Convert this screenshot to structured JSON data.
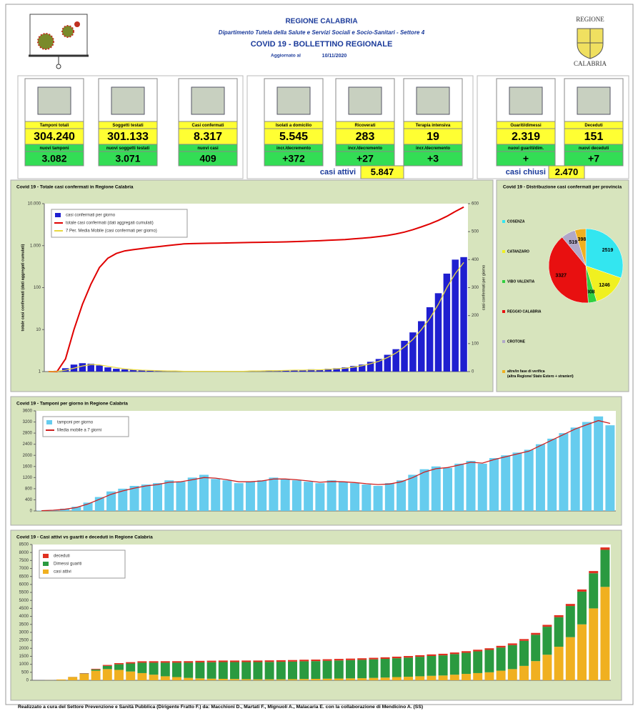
{
  "header": {
    "region": "REGIONE CALABRIA",
    "department": "Dipartimento Tutela della Salute e Servizi Sociali e Socio-Sanitari - Settore 4",
    "title": "COVID 19 - BOLLETTINO REGIONALE",
    "updated_label": "Aggiornato al",
    "updated_date": "10/11/2020",
    "logo_top": "REGIONE",
    "logo_bottom": "CALABRIA"
  },
  "tiles": [
    {
      "label": "Tamponi totali",
      "value": "304.240",
      "sublabel": "nuovi tamponi",
      "subvalue": "3.082"
    },
    {
      "label": "Soggetti testati",
      "value": "301.133",
      "sublabel": "nuovi soggetti testati",
      "subvalue": "3.071"
    },
    {
      "label": "Casi confermati",
      "value": "8.317",
      "sublabel": "nuovi casi",
      "subvalue": "409"
    },
    {
      "label": "Isolati a domicilio",
      "value": "5.545",
      "sublabel": "incr./decremento",
      "subvalue": "+372"
    },
    {
      "label": "Ricoverati",
      "value": "283",
      "sublabel": "incr./decremento",
      "subvalue": "+27"
    },
    {
      "label": "Terapia intensiva",
      "value": "19",
      "sublabel": "incr./decremento",
      "subvalue": "+3"
    },
    {
      "label": "Guariti/dimessi",
      "value": "2.319",
      "sublabel": "nuovi guariti/dim.",
      "subvalue": "+"
    },
    {
      "label": "Deceduti",
      "value": "151",
      "sublabel": "nuovi deceduti",
      "subvalue": "+7"
    }
  ],
  "casi_attivi": {
    "label": "casi attivi",
    "value": "5.847"
  },
  "casi_chiusi": {
    "label": "casi chiusi",
    "value": "2.470"
  },
  "chart_data": [
    {
      "type": "bar",
      "title": "Covid 19 - Totale casi confermati in Regione Calabria",
      "ylabel": "totale casi confermati (dati aggregati cumulati)",
      "y2label": "casi confermati per giorno",
      "ylog": true,
      "ylim": [
        1,
        10000
      ],
      "yticks": [
        1,
        10,
        100,
        {
          "value": 1000,
          "label": "1.000"
        },
        {
          "value": 10000,
          "label": "10.000"
        }
      ],
      "y2lim": [
        0,
        600
      ],
      "y2ticks": [
        0,
        100,
        200,
        300,
        400,
        500,
        600
      ],
      "legend": "upper left",
      "series": [
        {
          "name": "casi confermati per giorno",
          "color": "#1f1fd0",
          "type": "bar",
          "axis": "y2",
          "values": [
            0,
            3,
            12,
            25,
            30,
            28,
            22,
            15,
            10,
            8,
            6,
            5,
            3,
            2,
            2,
            1,
            1,
            1,
            1,
            0,
            1,
            1,
            2,
            1,
            3,
            2,
            4,
            3,
            5,
            6,
            4,
            8,
            6,
            10,
            12,
            15,
            20,
            25,
            35,
            45,
            60,
            80,
            110,
            140,
            180,
            230,
            280,
            350,
            400,
            409
          ]
        },
        {
          "name": "totale casi confermati (dati aggregati cumulati)",
          "color": "#e00000",
          "type": "line",
          "axis": "y",
          "values": [
            1,
            1,
            2,
            10,
            40,
            120,
            300,
            500,
            650,
            750,
            800,
            850,
            900,
            950,
            1000,
            1050,
            1100,
            1120,
            1130,
            1140,
            1150,
            1160,
            1170,
            1180,
            1190,
            1200,
            1210,
            1220,
            1230,
            1250,
            1270,
            1290,
            1310,
            1340,
            1370,
            1400,
            1450,
            1500,
            1560,
            1650,
            1750,
            1900,
            2100,
            2400,
            2800,
            3300,
            4000,
            5000,
            6500,
            8317
          ]
        },
        {
          "name": "7 Per. Media Mobile (casi confermati per giorno)",
          "color": "#e8d840",
          "type": "line",
          "axis": "y2",
          "values": [
            0,
            1,
            5,
            12,
            20,
            25,
            24,
            19,
            14,
            10,
            7,
            5,
            4,
            3,
            2,
            2,
            1,
            1,
            1,
            1,
            1,
            1,
            1,
            1,
            2,
            2,
            3,
            3,
            4,
            5,
            5,
            6,
            6,
            8,
            10,
            12,
            16,
            21,
            28,
            37,
            50,
            66,
            88,
            115,
            150,
            190,
            240,
            300,
            350,
            390
          ]
        }
      ]
    },
    {
      "type": "pie",
      "title": "Covid 19 - Distribuzione casi confermati per provincia",
      "categories": [
        "COSENZA",
        "CATANZARO",
        "VIBO VALENTIA",
        "REGGIO CALABRIA",
        "CROTONE",
        "altre/in fase di verifica (altra Regione/ Stato Estero + stranieri)"
      ],
      "values": [
        2519,
        1246,
        308,
        3327,
        519,
        398
      ],
      "colors": [
        "#33e6f0",
        "#f0f020",
        "#30d040",
        "#e81010",
        "#b0a8c8",
        "#f0b020"
      ]
    },
    {
      "type": "bar",
      "title": "Covid 19 - Tamponi per giorno in Regione Calabria",
      "ylim": [
        0,
        3600
      ],
      "yticks": [
        0,
        400,
        800,
        1200,
        1600,
        2000,
        2400,
        2800,
        3200,
        3600
      ],
      "legend": "upper left",
      "series": [
        {
          "name": "tamponi per giorno",
          "color": "#66ccee",
          "type": "bar",
          "axis": "y",
          "values": [
            10,
            30,
            80,
            150,
            300,
            500,
            700,
            800,
            900,
            950,
            1000,
            1100,
            1050,
            1200,
            1300,
            1150,
            1100,
            1000,
            1050,
            1100,
            1200,
            1150,
            1100,
            1050,
            1000,
            1100,
            1050,
            1000,
            950,
            900,
            1000,
            1100,
            1300,
            1500,
            1600,
            1550,
            1700,
            1800,
            1700,
            1900,
            2000,
            2100,
            2200,
            2400,
            2600,
            2800,
            3000,
            3200,
            3400,
            3082
          ]
        },
        {
          "name": "Media mobile a 7 giorni",
          "color": "#cc2020",
          "type": "line",
          "axis": "y",
          "values": [
            10,
            25,
            60,
            120,
            250,
            420,
            600,
            720,
            820,
            900,
            950,
            1030,
            1050,
            1120,
            1200,
            1180,
            1120,
            1050,
            1050,
            1080,
            1150,
            1150,
            1120,
            1080,
            1030,
            1060,
            1050,
            1020,
            980,
            950,
            970,
            1050,
            1200,
            1400,
            1520,
            1560,
            1650,
            1750,
            1720,
            1850,
            1950,
            2050,
            2150,
            2350,
            2550,
            2750,
            2950,
            3100,
            3250,
            3150
          ]
        }
      ]
    },
    {
      "type": "stackedbar",
      "title": "Covid 19 - Casi attivi vs guariti e deceduti in Regione Calabria",
      "ylim": [
        0,
        8500
      ],
      "yticks": [
        0,
        500,
        1000,
        1500,
        2000,
        2500,
        3000,
        3500,
        4000,
        4500,
        5000,
        5500,
        6000,
        6500,
        7000,
        7500,
        8000,
        8500
      ],
      "legend": "upper left",
      "series": [
        {
          "name": "deceduti",
          "color": "#e03020",
          "values": [
            0,
            0,
            1,
            5,
            20,
            40,
            60,
            75,
            85,
            90,
            93,
            95,
            96,
            97,
            97,
            97,
            97,
            97,
            97,
            97,
            97,
            97,
            97,
            97,
            97,
            97,
            98,
            98,
            98,
            98,
            99,
            99,
            99,
            100,
            100,
            100,
            101,
            102,
            103,
            104,
            106,
            108,
            110,
            115,
            120,
            125,
            130,
            135,
            140,
            151
          ]
        },
        {
          "name": "Dimessi guariti",
          "color": "#2a9a40",
          "values": [
            0,
            0,
            0,
            5,
            20,
            80,
            200,
            350,
            500,
            650,
            750,
            850,
            900,
            950,
            1000,
            1030,
            1050,
            1060,
            1070,
            1080,
            1090,
            1100,
            1100,
            1110,
            1110,
            1120,
            1130,
            1140,
            1150,
            1160,
            1170,
            1180,
            1200,
            1220,
            1240,
            1260,
            1290,
            1320,
            1360,
            1400,
            1450,
            1500,
            1570,
            1650,
            1750,
            1850,
            1950,
            2050,
            2200,
            2319
          ]
        },
        {
          "name": "casi attivi",
          "color": "#f0b020",
          "values": [
            0,
            5,
            50,
            200,
            400,
            600,
            700,
            650,
            550,
            450,
            350,
            250,
            200,
            150,
            120,
            100,
            90,
            80,
            70,
            60,
            60,
            60,
            70,
            80,
            90,
            100,
            110,
            120,
            130,
            150,
            170,
            200,
            220,
            250,
            280,
            300,
            350,
            400,
            450,
            500,
            600,
            700,
            900,
            1200,
            1600,
            2100,
            2700,
            3500,
            4500,
            5847
          ]
        }
      ]
    }
  ],
  "footer": "Realizzato a cura del Settore Prevenzione e Sanità Pubblica (Dirigente Fratto F.) da: Macchioni D., Martati F., Mignuoli A., Malacaria E. con la collaborazione di Mendicino A. (SS)"
}
